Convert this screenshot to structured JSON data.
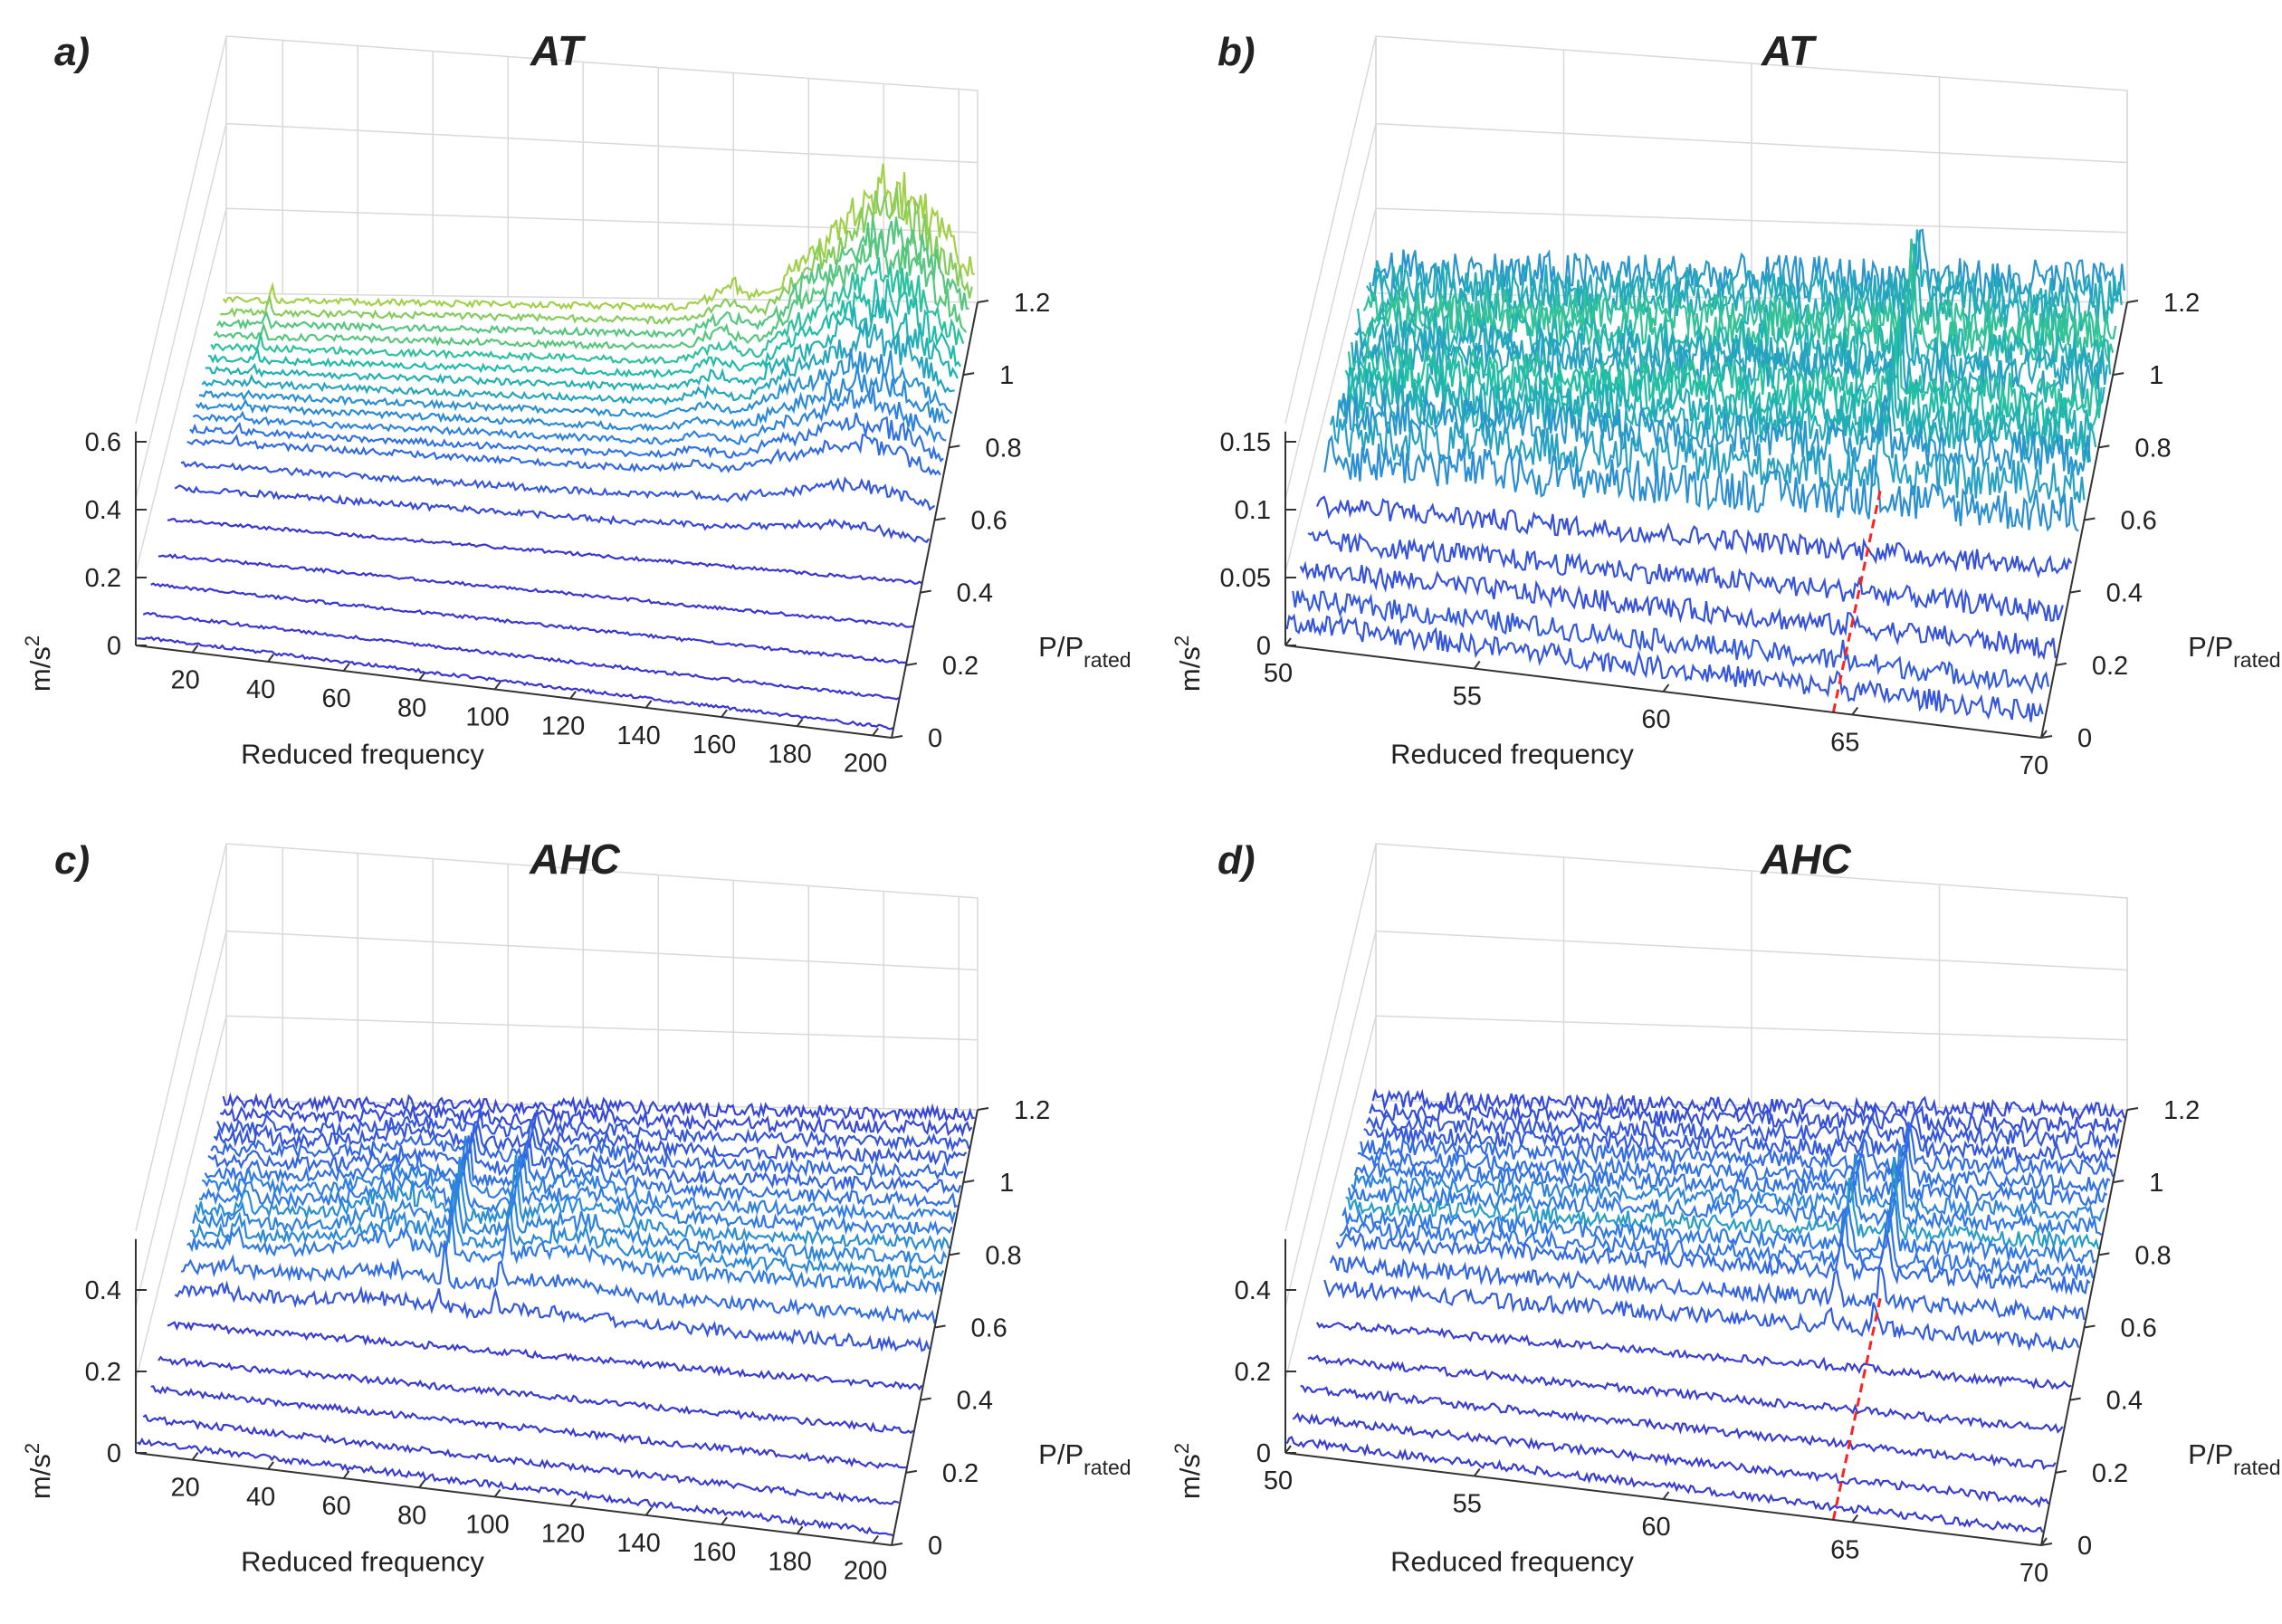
{
  "figure": {
    "description_labels": [
      "a)",
      "b)",
      "c)",
      "d)"
    ]
  },
  "chart_data": [
    {
      "type": "waterfall3d",
      "panel_label": "a)",
      "title": "AT",
      "xlabel": "Reduced frequency",
      "ylabel_main": "P/P",
      "ylabel_sub": "rated",
      "zlabel": "m/s",
      "zlabel_sup": "2",
      "x_ticks": [
        "20",
        "40",
        "60",
        "80",
        "100",
        "120",
        "140",
        "160",
        "180",
        "200"
      ],
      "x_tick_values": [
        20,
        40,
        60,
        80,
        100,
        120,
        140,
        160,
        180,
        200
      ],
      "xlim": [
        5,
        205
      ],
      "y_ticks": [
        "0",
        "0.2",
        "0.4",
        "0.6",
        "0.8",
        "1",
        "1.2"
      ],
      "y_tick_values": [
        0,
        0.2,
        0.4,
        0.6,
        0.8,
        1.0,
        1.2
      ],
      "ylim": [
        0,
        1.2
      ],
      "z_ticks": [
        "0",
        "0.2",
        "0.4",
        "0.6"
      ],
      "z_tick_values": [
        0,
        0.2,
        0.4,
        0.6
      ],
      "zlim": [
        0,
        0.6
      ],
      "power_levels": [
        0.02,
        0.1,
        0.2,
        0.3,
        0.42,
        0.52,
        0.6,
        0.68,
        0.72,
        0.76,
        0.8,
        0.84,
        0.88,
        0.92,
        0.96,
        1.0,
        1.04,
        1.08,
        1.12,
        1.16
      ],
      "baseline_noise": 0.012,
      "peaks": [
        {
          "x": 18,
          "width": 0.6,
          "amp": 0.05
        },
        {
          "x": 140,
          "width": 7,
          "amp": 0.08
        },
        {
          "x": 160,
          "width": 9,
          "amp": 0.14
        },
        {
          "x": 175,
          "width": 12,
          "amp": 0.25
        },
        {
          "x": 190,
          "width": 15,
          "amp": 0.35
        }
      ],
      "peak_power_profile": "rising",
      "has_red_line": false
    },
    {
      "type": "waterfall3d",
      "panel_label": "b)",
      "title": "AT",
      "xlabel": "Reduced frequency",
      "ylabel_main": "P/P",
      "ylabel_sub": "rated",
      "zlabel": "m/s",
      "zlabel_sup": "2",
      "x_ticks": [
        "50",
        "55",
        "60",
        "65",
        "70"
      ],
      "x_tick_values": [
        50,
        55,
        60,
        65,
        70
      ],
      "xlim": [
        50,
        70
      ],
      "y_ticks": [
        "0",
        "0.2",
        "0.4",
        "0.6",
        "0.8",
        "1",
        "1.2"
      ],
      "y_tick_values": [
        0,
        0.2,
        0.4,
        0.6,
        0.8,
        1.0,
        1.2
      ],
      "ylim": [
        0,
        1.2
      ],
      "z_ticks": [
        "0",
        "0.05",
        "0.1",
        "0.15"
      ],
      "z_tick_values": [
        0,
        0.05,
        0.1,
        0.15
      ],
      "zlim": [
        0,
        0.15
      ],
      "power_levels": [
        0.02,
        0.1,
        0.2,
        0.3,
        0.42,
        0.52,
        0.6,
        0.68,
        0.72,
        0.76,
        0.8,
        0.84,
        0.88,
        0.92,
        0.96,
        1.0,
        1.04,
        1.08,
        1.12,
        1.16
      ],
      "baseline_noise": 0.02,
      "peaks": [
        {
          "x": 64.6,
          "width": 0.08,
          "amp": 0.06
        }
      ],
      "peak_power_profile": "flat",
      "has_red_line": true,
      "red_line_x": 64.5
    },
    {
      "type": "waterfall3d",
      "panel_label": "c)",
      "title": "AHC",
      "xlabel": "Reduced frequency",
      "ylabel_main": "P/P",
      "ylabel_sub": "rated",
      "zlabel": "m/s",
      "zlabel_sup": "2",
      "x_ticks": [
        "20",
        "40",
        "60",
        "80",
        "100",
        "120",
        "140",
        "160",
        "180",
        "200"
      ],
      "x_tick_values": [
        20,
        40,
        60,
        80,
        100,
        120,
        140,
        160,
        180,
        200
      ],
      "xlim": [
        5,
        205
      ],
      "y_ticks": [
        "0",
        "0.2",
        "0.4",
        "0.6",
        "0.8",
        "1",
        "1.2"
      ],
      "y_tick_values": [
        0,
        0.2,
        0.4,
        0.6,
        0.8,
        1.0,
        1.2
      ],
      "ylim": [
        0,
        1.2
      ],
      "z_ticks": [
        "0",
        "0.2",
        "0.4"
      ],
      "z_tick_values": [
        0,
        0.2,
        0.4
      ],
      "zlim": [
        0,
        0.5
      ],
      "power_levels": [
        0.02,
        0.1,
        0.2,
        0.3,
        0.42,
        0.52,
        0.6,
        0.68,
        0.72,
        0.76,
        0.8,
        0.84,
        0.88,
        0.92,
        0.96,
        1.0,
        1.04,
        1.08,
        1.12,
        1.16
      ],
      "baseline_noise": 0.02,
      "peaks": [
        {
          "x": 18,
          "width": 1.5,
          "amp": 0.06
        },
        {
          "x": 60,
          "width": 14,
          "amp": 0.08
        },
        {
          "x": 105,
          "width": 16,
          "amp": 0.07
        },
        {
          "x": 75,
          "width": 0.8,
          "amp": 0.18
        },
        {
          "x": 90,
          "width": 0.8,
          "amp": 0.16
        }
      ],
      "peak_power_profile": "mid",
      "has_red_line": false
    },
    {
      "type": "waterfall3d",
      "panel_label": "d)",
      "title": "AHC",
      "xlabel": "Reduced frequency",
      "ylabel_main": "P/P",
      "ylabel_sub": "rated",
      "zlabel": "m/s",
      "zlabel_sup": "2",
      "x_ticks": [
        "50",
        "55",
        "60",
        "65",
        "70"
      ],
      "x_tick_values": [
        50,
        55,
        60,
        65,
        70
      ],
      "xlim": [
        50,
        70
      ],
      "y_ticks": [
        "0",
        "0.2",
        "0.4",
        "0.6",
        "0.8",
        "1",
        "1.2"
      ],
      "y_tick_values": [
        0,
        0.2,
        0.4,
        0.6,
        0.8,
        1.0,
        1.2
      ],
      "ylim": [
        0,
        1.2
      ],
      "z_ticks": [
        "0",
        "0.2",
        "0.4"
      ],
      "z_tick_values": [
        0,
        0.2,
        0.4
      ],
      "zlim": [
        0,
        0.5
      ],
      "power_levels": [
        0.02,
        0.1,
        0.2,
        0.3,
        0.42,
        0.52,
        0.6,
        0.68,
        0.72,
        0.76,
        0.8,
        0.84,
        0.88,
        0.92,
        0.96,
        1.0,
        1.04,
        1.08,
        1.12,
        1.16
      ],
      "baseline_noise": 0.025,
      "peaks": [
        {
          "x": 64.6,
          "width": 0.1,
          "amp": 0.22
        },
        {
          "x": 63.4,
          "width": 0.1,
          "amp": 0.15
        }
      ],
      "peak_power_profile": "mid",
      "has_red_line": true,
      "red_line_x": 64.5
    }
  ],
  "colors": {
    "low": "#3a2fd0",
    "mid": "#2f9fe8",
    "teal": "#1fbfa5",
    "high": "#f5d91a",
    "grid": "#d9d9d9",
    "axis": "#333333",
    "red_line": "#ff2020"
  }
}
